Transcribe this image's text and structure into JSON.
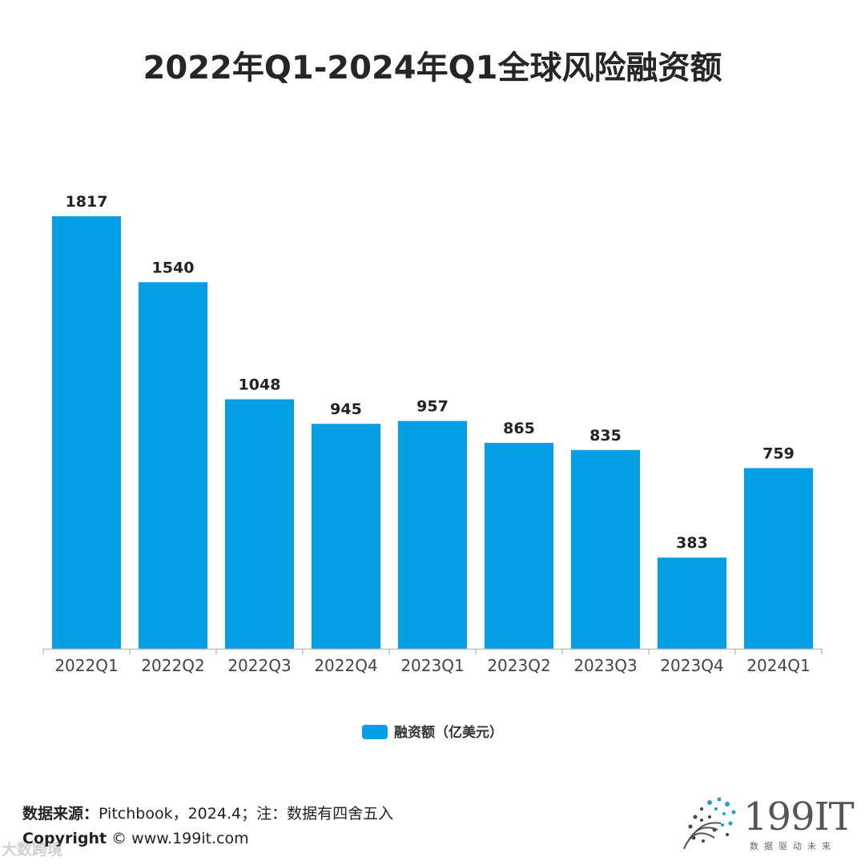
{
  "title": "2022年Q1-2024年Q1全球风险融资额",
  "chart_data": {
    "type": "bar",
    "title": "2022年Q1-2024年Q1全球风险融资额",
    "categories": [
      "2022Q1",
      "2022Q2",
      "2022Q3",
      "2022Q4",
      "2023Q1",
      "2023Q2",
      "2023Q3",
      "2023Q4",
      "2024Q1"
    ],
    "series": [
      {
        "name": "融资额（亿美元）",
        "values": [
          1817,
          1540,
          1048,
          945,
          957,
          865,
          835,
          383,
          759
        ]
      }
    ],
    "ylim": [
      0,
      1817
    ],
    "xlabel": "",
    "ylabel": "",
    "grid": false,
    "legend": "bottom"
  },
  "colors": {
    "bar": "#069fe6",
    "axis": "#bfbfbf",
    "label": "#222222",
    "tick": "#444444"
  },
  "legend": {
    "label": "融资额（亿美元）"
  },
  "footer": {
    "source_label": "数据来源：",
    "source_text": "Pitchbook，2024.4；注：数据有四舍五入",
    "copyright_label": "Copyright",
    "copyright_text": "©  www.199it.com",
    "watermark": "大数跨境"
  },
  "logo": {
    "text": "199IT",
    "sub": "数据驱动未来"
  }
}
